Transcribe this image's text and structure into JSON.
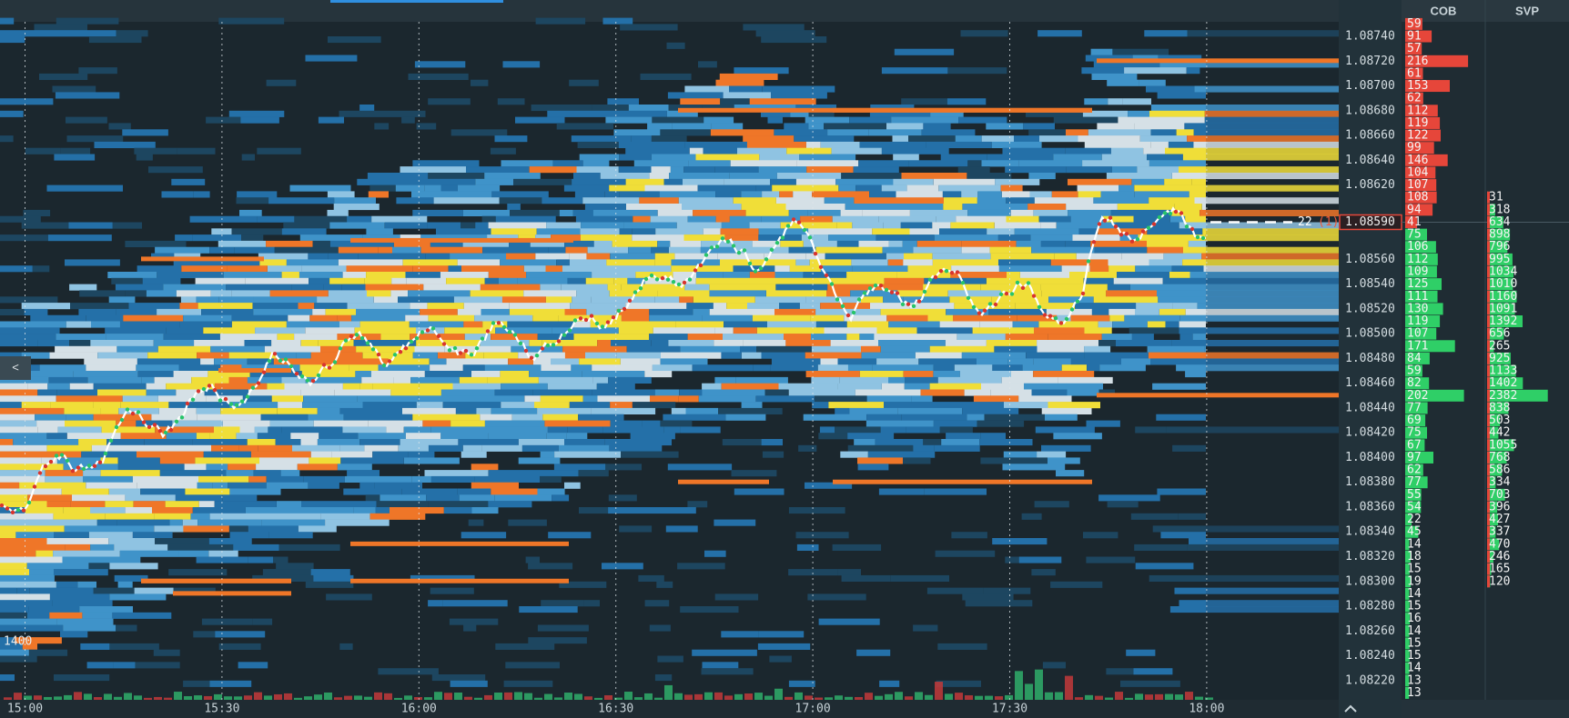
{
  "header": {
    "cob_label": "COB",
    "svp_label": "SVP"
  },
  "collapse_button": "<",
  "volume_label": "1400",
  "time_axis": [
    "15:00",
    "15:30",
    "16:00",
    "16:30",
    "17:00",
    "17:30",
    "18:00"
  ],
  "price_axis": [
    "1.08740",
    "1.08720",
    "1.08700",
    "1.08680",
    "1.08660",
    "1.08640",
    "1.08620",
    "1.08560",
    "1.08540",
    "1.08520",
    "1.08500",
    "1.08480",
    "1.08460",
    "1.08440",
    "1.08420",
    "1.08400",
    "1.08380",
    "1.08360",
    "1.08340",
    "1.08320",
    "1.08300",
    "1.08280",
    "1.08260",
    "1.08240",
    "1.08220"
  ],
  "current_price": "1.08590",
  "order_marker": {
    "size": "22",
    "count": "(1)"
  },
  "cob": [
    59,
    91,
    57,
    216,
    61,
    153,
    62,
    112,
    119,
    122,
    99,
    146,
    104,
    107,
    108,
    94,
    41,
    75,
    106,
    112,
    109,
    125,
    111,
    130,
    119,
    107,
    171,
    84,
    59,
    82,
    202,
    77,
    69,
    75,
    67,
    97,
    62,
    77,
    55,
    54,
    22,
    45,
    14,
    18,
    15,
    19,
    14,
    15,
    16,
    14,
    15,
    15,
    14,
    13,
    13
  ],
  "svp": [
    31,
    318,
    634,
    898,
    796,
    995,
    1034,
    1010,
    1160,
    1091,
    1392,
    656,
    265,
    925,
    1133,
    1402,
    2382,
    838,
    503,
    442,
    1055,
    768,
    586,
    334,
    703,
    396,
    427,
    337,
    470,
    246,
    165,
    120
  ]
}
